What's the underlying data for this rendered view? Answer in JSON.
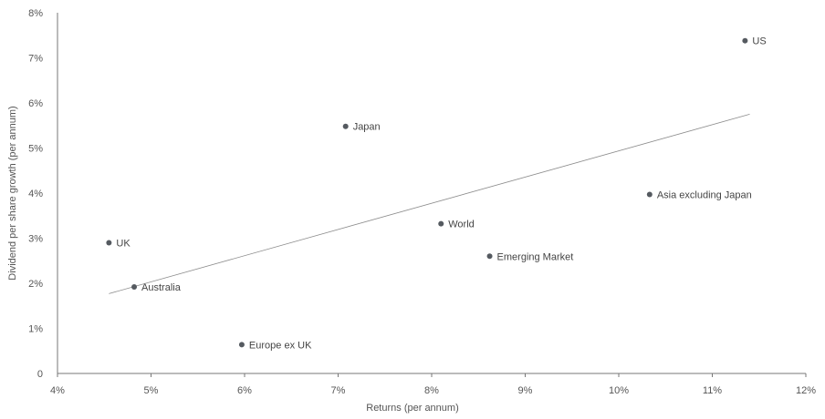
{
  "chart_data": {
    "type": "scatter",
    "title": "",
    "xlabel": "Returns (per annum)",
    "ylabel": "Dividend per share growth (per annum)",
    "xlim": [
      4,
      12
    ],
    "ylim": [
      0,
      8
    ],
    "x_ticks": [
      4,
      5,
      6,
      7,
      8,
      9,
      10,
      11,
      12
    ],
    "x_tick_labels": [
      "4%",
      "5%",
      "6%",
      "7%",
      "8%",
      "9%",
      "10%",
      "11%",
      "12%"
    ],
    "y_ticks": [
      0,
      1,
      2,
      3,
      4,
      5,
      6,
      7,
      8
    ],
    "y_tick_labels": [
      "0",
      "1%",
      "2%",
      "3%",
      "4%",
      "5%",
      "6%",
      "7%",
      "8%"
    ],
    "grid": false,
    "points": [
      {
        "label": "US",
        "x": 11.35,
        "y": 7.38
      },
      {
        "label": "Japan",
        "x": 7.08,
        "y": 5.48
      },
      {
        "label": "Asia excluding Japan",
        "x": 10.33,
        "y": 3.97
      },
      {
        "label": "World",
        "x": 8.1,
        "y": 3.32
      },
      {
        "label": "UK",
        "x": 4.55,
        "y": 2.9
      },
      {
        "label": "Emerging Market",
        "x": 8.62,
        "y": 2.6
      },
      {
        "label": "Australia",
        "x": 4.82,
        "y": 1.92
      },
      {
        "label": "Europe ex UK",
        "x": 5.97,
        "y": 0.64
      }
    ],
    "trendline": {
      "x": [
        4.55,
        11.4
      ],
      "y": [
        1.77,
        5.75
      ]
    },
    "colors": {
      "point": "#555a60",
      "axis": "#777777",
      "trend": "#8c8c8c",
      "text": "#555555"
    }
  }
}
